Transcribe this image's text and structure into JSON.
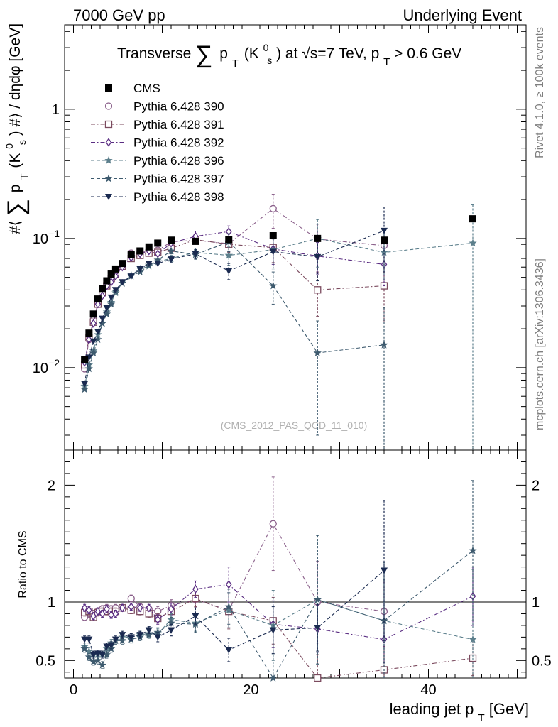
{
  "header": {
    "left": "7000 GeV pp",
    "right": "Underlying Event",
    "side_top": "Rivet 4.1.0, ≥ 100k events",
    "side_bottom": "mcplots.cern.ch [arXiv:1306.3436]"
  },
  "chart_data": [
    {
      "type": "scatter",
      "panel": "main",
      "title": "Transverse ∑ pT(K0s) at √s=7 TeV, pT > 0.6 GeV",
      "title_parts": {
        "t1": "Transverse",
        "sum": "∑",
        "p": "p",
        "T": "T",
        "k": "(K",
        "zero": "0",
        "s": "s",
        "t2": ") at √s=7 TeV, p",
        "t3": " > 0.6 GeV"
      },
      "ylabel_parts": {
        "a": "#⟨",
        "sum": "∑",
        "p": "p",
        "T": "T",
        "k": "(K",
        "zero": "0",
        "s": "s",
        "b": ") #⟩ / dηdφ [GeV]"
      },
      "yscale": "log",
      "ylim": [
        0.0023,
        4.5
      ],
      "xlim": [
        -1,
        51
      ],
      "y_ticks": [
        {
          "value": 1,
          "label": "1"
        },
        {
          "value": 0.1,
          "label": "10",
          "exp": "−1"
        },
        {
          "value": 0.01,
          "label": "10",
          "exp": "−2"
        }
      ],
      "watermark": "(CMS_2012_PAS_QCD_11_010)",
      "legend_position": "top-left",
      "x": [
        1.25,
        1.75,
        2.25,
        2.75,
        3.25,
        3.75,
        4.25,
        4.75,
        5.5,
        6.5,
        7.5,
        8.5,
        9.5,
        11,
        13.75,
        17.5,
        22.5,
        27.5,
        35,
        45
      ],
      "series": [
        {
          "name": "CMS",
          "marker": "filled-square",
          "color": "#000000",
          "line": "none",
          "values": [
            0.0115,
            0.0185,
            0.026,
            0.034,
            0.041,
            0.047,
            0.053,
            0.058,
            0.064,
            0.075,
            0.08,
            0.086,
            0.092,
            0.097,
            0.095,
            0.098,
            0.105,
            0.1,
            0.097,
            0.142
          ]
        },
        {
          "name": "Pythia 6.428 390",
          "marker": "open-circle",
          "color": "#8a5f8a",
          "line": "dashdot",
          "values": [
            0.0098,
            0.0165,
            0.0235,
            0.031,
            0.039,
            0.045,
            0.05,
            0.055,
            0.061,
            0.077,
            0.077,
            0.081,
            0.081,
            0.094,
            0.097,
            0.091,
            0.17,
            0.099,
            0.088,
            null
          ],
          "errors": [
            0,
            0,
            0,
            0,
            0,
            0,
            0,
            0,
            0,
            0,
            0,
            0,
            0,
            0.004,
            0.006,
            0.012,
            0.05,
            0.03,
            0.02,
            null
          ]
        },
        {
          "name": "Pythia 6.428 391",
          "marker": "open-square",
          "color": "#7b4a5e",
          "line": "dashdot",
          "values": [
            0.0105,
            0.017,
            0.0225,
            0.031,
            0.038,
            0.043,
            0.049,
            0.053,
            0.061,
            0.07,
            0.074,
            0.077,
            0.078,
            0.084,
            0.098,
            0.09,
            0.085,
            0.04,
            0.043,
            null
          ],
          "errors": [
            0,
            0,
            0,
            0,
            0,
            0,
            0,
            0,
            0,
            0,
            0,
            0,
            0,
            0.004,
            0.006,
            0.012,
            0.02,
            0.015,
            0.02,
            null
          ]
        },
        {
          "name": "Pythia 6.428 392",
          "marker": "open-diamond",
          "color": "#5a2d82",
          "line": "dashdot",
          "values": [
            0.011,
            0.0165,
            0.022,
            0.031,
            0.036,
            0.043,
            0.046,
            0.051,
            0.06,
            0.071,
            0.076,
            0.08,
            0.076,
            0.092,
            0.104,
            0.113,
            0.083,
            0.073,
            0.063,
            null
          ],
          "errors": [
            0,
            0,
            0,
            0,
            0,
            0,
            0,
            0,
            0,
            0,
            0,
            0,
            0,
            0.004,
            0.01,
            0.012,
            0.02,
            0.02,
            0.02,
            null
          ]
        },
        {
          "name": "Pythia 6.428 396",
          "marker": "star",
          "color": "#5c7f8c",
          "line": "dashed",
          "values": [
            0.0072,
            0.0105,
            0.0135,
            0.018,
            0.022,
            0.027,
            0.032,
            0.038,
            0.045,
            0.052,
            0.058,
            0.061,
            0.066,
            0.07,
            0.078,
            0.074,
            0.082,
            0.1,
            0.078,
            0.092
          ],
          "errors": [
            0,
            0,
            0,
            0,
            0,
            0,
            0,
            0,
            0,
            0,
            0,
            0,
            0,
            0.004,
            0.006,
            0.012,
            0.025,
            0.04,
            0.03,
            0.09
          ]
        },
        {
          "name": "Pythia 6.428 397",
          "marker": "star",
          "color": "#3d5a6e",
          "line": "dashed",
          "values": [
            0.0068,
            0.0098,
            0.013,
            0.0165,
            0.022,
            0.026,
            0.031,
            0.039,
            0.045,
            0.051,
            0.055,
            0.062,
            0.068,
            0.08,
            0.075,
            0.094,
            0.043,
            0.013,
            0.015,
            null
          ],
          "errors": [
            0,
            0,
            0,
            0,
            0,
            0,
            0,
            0,
            0,
            0,
            0,
            0,
            0,
            0.004,
            0.006,
            0.015,
            0.012,
            0.01,
            0.014,
            null
          ]
        },
        {
          "name": "Pythia 6.428 398",
          "marker": "filled-triangle-down",
          "color": "#1a2a50",
          "line": "dashed",
          "values": [
            0.0075,
            0.012,
            0.016,
            0.019,
            0.024,
            0.029,
            0.035,
            0.04,
            0.046,
            0.051,
            0.058,
            0.064,
            0.064,
            0.069,
            0.076,
            0.056,
            0.079,
            0.072,
            0.115,
            null
          ],
          "errors": [
            0,
            0,
            0,
            0,
            0,
            0,
            0,
            0,
            0,
            0,
            0,
            0,
            0,
            0.004,
            0.006,
            0.008,
            0.02,
            0.025,
            0.06,
            null
          ]
        }
      ]
    },
    {
      "type": "line",
      "panel": "ratio",
      "ylabel": "Ratio to CMS",
      "xlabel_parts": {
        "a": "leading jet p",
        "T": "T",
        "b": " [GeV]"
      },
      "ylim": [
        0.35,
        2.3
      ],
      "xlim": [
        -1,
        51
      ],
      "y_ticks": [
        {
          "value": 0.5,
          "label": "0.5"
        },
        {
          "value": 1,
          "label": "1"
        },
        {
          "value": 2,
          "label": "2"
        }
      ],
      "x_ticks": [
        {
          "value": 0,
          "label": "0"
        },
        {
          "value": 20,
          "label": "20"
        },
        {
          "value": 40,
          "label": "40"
        }
      ],
      "reference_line": 1,
      "x": [
        1.25,
        1.75,
        2.25,
        2.75,
        3.25,
        3.75,
        4.25,
        4.75,
        5.5,
        6.5,
        7.5,
        8.5,
        9.5,
        11,
        13.75,
        17.5,
        22.5,
        27.5,
        35,
        45
      ],
      "series": [
        {
          "name": "Pythia 6.428 390",
          "values": [
            0.87,
            0.9,
            0.9,
            0.92,
            0.94,
            0.95,
            0.94,
            0.95,
            0.95,
            1.03,
            0.96,
            0.94,
            0.92,
            0.97,
            1.02,
            0.93,
            1.67,
            1.0,
            0.92,
            null
          ],
          "errors": [
            0.03,
            0.03,
            0.03,
            0.03,
            0.03,
            0.03,
            0.03,
            0.03,
            0.03,
            0.03,
            0.03,
            0.03,
            0.04,
            0.05,
            0.07,
            0.15,
            0.4,
            0.35,
            0.25,
            null
          ]
        },
        {
          "name": "Pythia 6.428 391",
          "values": [
            0.91,
            0.92,
            0.87,
            0.91,
            0.92,
            0.92,
            0.92,
            0.92,
            0.95,
            0.93,
            0.92,
            0.9,
            0.86,
            0.92,
            1.03,
            0.92,
            0.84,
            0.35,
            0.42,
            0.52
          ],
          "errors": [
            0.03,
            0.03,
            0.03,
            0.03,
            0.03,
            0.03,
            0.03,
            0.03,
            0.03,
            0.03,
            0.03,
            0.03,
            0.04,
            0.05,
            0.07,
            0.15,
            0.2,
            0.2,
            0.2,
            0.15
          ]
        },
        {
          "name": "Pythia 6.428 392",
          "values": [
            0.95,
            0.93,
            0.88,
            0.92,
            0.9,
            0.94,
            0.89,
            0.9,
            0.95,
            0.96,
            0.95,
            0.95,
            0.85,
            0.94,
            1.11,
            1.15,
            0.81,
            0.77,
            0.68,
            1.05
          ],
          "errors": [
            0.03,
            0.03,
            0.03,
            0.03,
            0.03,
            0.03,
            0.03,
            0.03,
            0.03,
            0.03,
            0.03,
            0.03,
            0.04,
            0.05,
            0.07,
            0.15,
            0.2,
            0.2,
            0.2,
            0.25
          ]
        },
        {
          "name": "Pythia 6.428 396",
          "values": [
            0.62,
            0.58,
            0.55,
            0.55,
            0.55,
            0.6,
            0.65,
            0.67,
            0.7,
            0.7,
            0.72,
            0.73,
            0.73,
            0.85,
            0.82,
            0.93,
            0.8,
            1.02,
            0.84,
            0.68
          ],
          "errors": [
            0.03,
            0.03,
            0.03,
            0.03,
            0.03,
            0.03,
            0.03,
            0.03,
            0.03,
            0.03,
            0.03,
            0.03,
            0.04,
            0.05,
            0.07,
            0.15,
            0.3,
            0.55,
            0.35,
            0.6
          ]
        },
        {
          "name": "Pythia 6.428 397",
          "values": [
            0.6,
            0.53,
            0.49,
            0.5,
            0.46,
            0.55,
            0.6,
            0.67,
            0.67,
            0.68,
            0.7,
            0.72,
            0.74,
            0.82,
            0.81,
            0.96,
            0.35,
            1.02,
            0.84,
            1.44
          ],
          "errors": [
            0.03,
            0.03,
            0.03,
            0.03,
            0.03,
            0.03,
            0.03,
            0.03,
            0.03,
            0.03,
            0.03,
            0.03,
            0.04,
            0.05,
            0.07,
            0.15,
            0.2,
            0.55,
            0.5,
            0.6
          ]
        },
        {
          "name": "Pythia 6.428 398",
          "values": [
            0.68,
            0.68,
            0.55,
            0.56,
            0.55,
            0.62,
            0.63,
            0.68,
            0.72,
            0.7,
            0.72,
            0.76,
            0.7,
            0.76,
            0.88,
            0.59,
            0.76,
            0.78,
            1.27,
            null
          ],
          "errors": [
            0.03,
            0.03,
            0.03,
            0.03,
            0.03,
            0.03,
            0.03,
            0.03,
            0.03,
            0.03,
            0.03,
            0.03,
            0.04,
            0.05,
            0.07,
            0.1,
            0.2,
            0.2,
            0.6,
            null
          ]
        }
      ]
    }
  ]
}
